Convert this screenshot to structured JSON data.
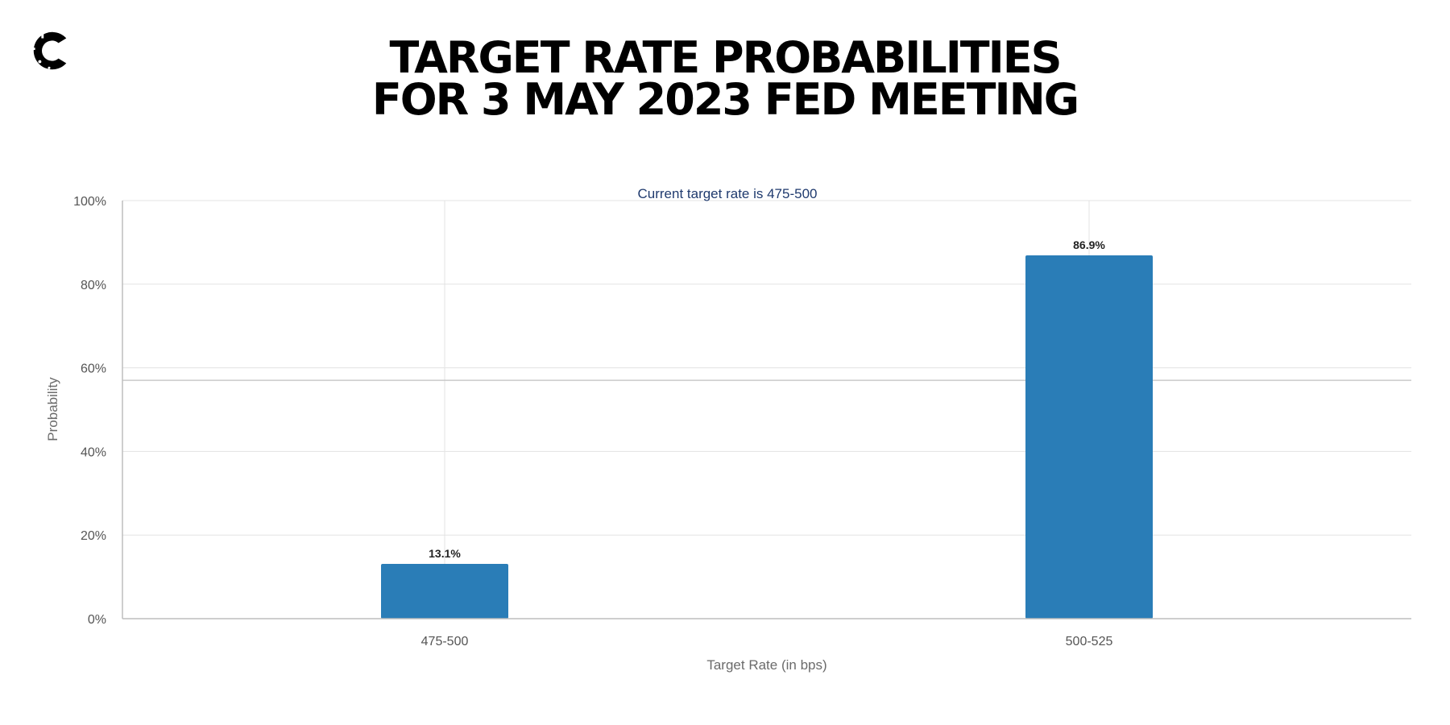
{
  "brand": {
    "logo_icon": "cointelegraph-c-logo-icon"
  },
  "headline": {
    "line1": "TARGET RATE PROBABILITIES",
    "line2": "FOR 3 MAY 2023 FED MEETING"
  },
  "chart_data": {
    "type": "bar",
    "subtitle": "Current target rate is 475-500",
    "categories": [
      "475-500",
      "500-525"
    ],
    "values": [
      13.1,
      86.9
    ],
    "value_labels": [
      "13.1%",
      "86.9%"
    ],
    "xlabel": "Target Rate (in bps)",
    "ylabel": "Probability",
    "ylim": [
      0,
      100
    ],
    "yticks": [
      0,
      20,
      40,
      60,
      80,
      100
    ],
    "ytick_labels": [
      "0%",
      "20%",
      "40%",
      "60%",
      "80%",
      "100%"
    ],
    "reference_line_value": 57,
    "grid": true,
    "bar_color": "#2a7db7"
  }
}
